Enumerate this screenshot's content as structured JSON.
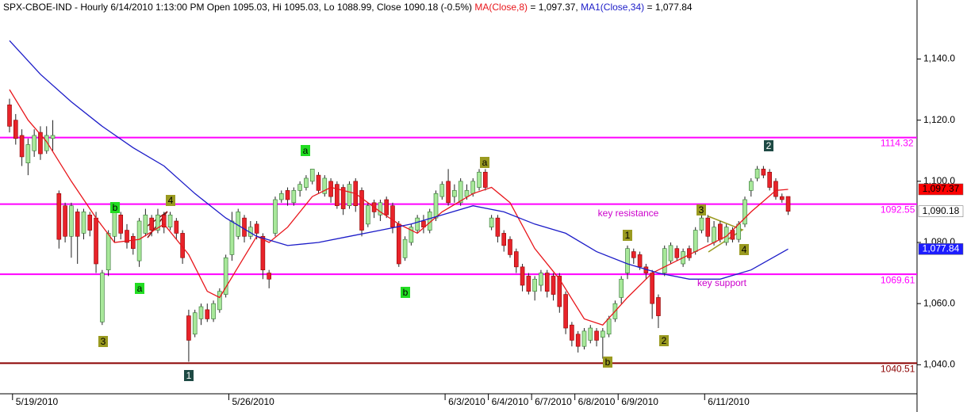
{
  "chart_data": {
    "type": "candlestick",
    "title": "SPX-CBOE-IND - Hourly 6/14/2010 1:13:00 PM Open 1095.03, Hi 1095.03, Lo 1088.99, Close 1090.18 (-0.5%)",
    "categories": [
      null,
      "5/19/2010",
      null,
      null,
      null,
      null,
      null,
      null,
      null,
      null,
      null,
      null,
      null,
      null,
      null,
      null,
      null,
      null,
      null,
      null,
      null,
      null,
      null,
      null,
      null,
      null,
      null,
      null,
      null,
      null,
      null,
      null,
      null,
      null,
      null,
      null,
      "5/26/2010",
      null,
      null,
      null,
      null,
      null,
      null,
      null,
      null,
      null,
      null,
      null,
      null,
      null,
      null,
      null,
      null,
      null,
      null,
      null,
      null,
      null,
      null,
      null,
      null,
      null,
      null,
      null,
      null,
      null,
      null,
      null,
      null,
      null,
      null,
      "6/3/2010",
      null,
      null,
      null,
      null,
      null,
      null,
      "6/4/2010",
      null,
      null,
      null,
      null,
      null,
      null,
      "6/7/2010",
      null,
      null,
      null,
      null,
      null,
      null,
      "6/8/2010",
      null,
      null,
      null,
      null,
      null,
      null,
      "6/9/2010",
      null,
      null,
      null,
      null,
      null,
      null,
      null,
      null,
      null,
      null,
      null,
      null,
      null,
      "6/11/2010",
      null,
      null,
      null,
      null,
      null,
      null,
      null,
      null,
      null,
      null,
      null,
      null,
      null
    ],
    "open": [
      1125,
      1120,
      1115,
      1106,
      1110,
      1116,
      1110,
      1114,
      1096,
      1092,
      1082,
      1090,
      1083,
      1089,
      1088,
      1054,
      1071,
      1082,
      1089,
      1084,
      1082,
      1074,
      1083,
      1088,
      1084,
      1089,
      1085,
      1087,
      1083,
      1056,
      1050,
      1055,
      1058,
      1055,
      1058,
      1063,
      1076,
      1082,
      1088,
      1082,
      1086,
      1082,
      1070,
      1083,
      1094,
      1097,
      1093,
      1097,
      1098,
      1100,
      1102,
      1096,
      1100,
      1099,
      1098,
      1092,
      1100,
      1097,
      1086,
      1093,
      1089,
      1094,
      1092,
      1086,
      1075,
      1080,
      1084,
      1087,
      1084,
      1088,
      1095,
      1100,
      1095,
      1093,
      1095,
      1096,
      1098,
      1103,
      1085,
      1088,
      1083,
      1081,
      1077,
      1072,
      1069,
      1064,
      1066,
      1070,
      1069,
      1069,
      1063,
      1053,
      1050,
      1046,
      1048,
      1051,
      1049,
      1050,
      1055,
      1062,
      1070,
      1077,
      1076,
      1072,
      1070,
      1062,
      1070,
      1074,
      1078,
      1073,
      1078,
      1077,
      1084,
      1088,
      1080,
      1086,
      1080,
      1084,
      1081,
      1086,
      1097,
      1101,
      1104,
      1103,
      1100,
      1095,
      1095.03
    ],
    "high": [
      1127,
      1122,
      1117,
      1114,
      1117,
      1118,
      1118,
      1120,
      1097,
      1093,
      1093,
      1091,
      1091,
      1090,
      1090,
      1071,
      1084,
      1093,
      1090,
      1086,
      1083,
      1088,
      1091,
      1089,
      1091,
      1090,
      1090,
      1088,
      1084,
      1058,
      1058,
      1060,
      1060,
      1061,
      1065,
      1076,
      1090,
      1091,
      1089,
      1087,
      1087,
      1083,
      1071,
      1095,
      1097,
      1098,
      1098,
      1100,
      1102,
      1104,
      1103,
      1102,
      1101,
      1100,
      1099,
      1100,
      1101,
      1098,
      1093,
      1094,
      1094,
      1095,
      1093,
      1087,
      1082,
      1086,
      1089,
      1089,
      1091,
      1097,
      1100,
      1104,
      1099,
      1101,
      1099,
      1101,
      1104,
      1104,
      1089,
      1089,
      1084,
      1082,
      1078,
      1073,
      1070,
      1069,
      1071,
      1071,
      1070,
      1070,
      1064,
      1054,
      1051,
      1052,
      1053,
      1052,
      1052,
      1056,
      1061,
      1069,
      1079,
      1078,
      1077,
      1073,
      1071,
      1063,
      1079,
      1080,
      1079,
      1078,
      1079,
      1085,
      1089,
      1089,
      1087,
      1087,
      1086,
      1085,
      1087,
      1095,
      1101,
      1105,
      1105,
      1104,
      1101,
      1096,
      1095.03
    ],
    "low": [
      1116,
      1112,
      1105,
      1102,
      1108,
      1107,
      1109,
      1110,
      1078,
      1080,
      1075,
      1073,
      1081,
      1082,
      1070,
      1053,
      1069,
      1080,
      1081,
      1078,
      1076,
      1072,
      1082,
      1082,
      1083,
      1083,
      1084,
      1081,
      1073,
      1041,
      1049,
      1053,
      1054,
      1054,
      1057,
      1062,
      1074,
      1081,
      1080,
      1081,
      1081,
      1068,
      1065,
      1082,
      1093,
      1092,
      1092,
      1095,
      1097,
      1099,
      1096,
      1095,
      1093,
      1091,
      1089,
      1091,
      1090,
      1082,
      1085,
      1088,
      1087,
      1088,
      1083,
      1072,
      1074,
      1079,
      1083,
      1083,
      1083,
      1087,
      1094,
      1092,
      1093,
      1092,
      1094,
      1095,
      1097,
      1097,
      1084,
      1080,
      1077,
      1075,
      1070,
      1064,
      1063,
      1061,
      1064,
      1062,
      1061,
      1057,
      1050,
      1046,
      1044,
      1045,
      1047,
      1046,
      1042,
      1049,
      1054,
      1060,
      1068,
      1073,
      1071,
      1068,
      1055,
      1052,
      1069,
      1073,
      1074,
      1072,
      1074,
      1076,
      1083,
      1080,
      1079,
      1080,
      1079,
      1080,
      1080,
      1085,
      1095,
      1100,
      1101,
      1097,
      1094,
      1093,
      1088.99
    ],
    "close": [
      1118,
      1114,
      1108,
      1112,
      1115,
      1109,
      1115,
      1115,
      1081,
      1082,
      1092,
      1082,
      1090,
      1084,
      1073,
      1070,
      1083,
      1090,
      1083,
      1080,
      1078,
      1087,
      1089,
      1084,
      1089,
      1085,
      1089,
      1083,
      1075,
      1048,
      1057,
      1059,
      1055,
      1060,
      1064,
      1075,
      1087,
      1090,
      1082,
      1085,
      1083,
      1071,
      1068,
      1094,
      1096,
      1094,
      1097,
      1099,
      1101,
      1104,
      1097,
      1101,
      1095,
      1092,
      1091,
      1099,
      1092,
      1084,
      1092,
      1090,
      1093,
      1089,
      1085,
      1073,
      1081,
      1085,
      1088,
      1085,
      1090,
      1096,
      1099,
      1093,
      1097,
      1100,
      1097,
      1100,
      1103,
      1098,
      1088,
      1082,
      1079,
      1076,
      1072,
      1066,
      1064,
      1068,
      1070,
      1064,
      1063,
      1059,
      1052,
      1048,
      1046,
      1051,
      1052,
      1048,
      1051,
      1055,
      1060,
      1068,
      1078,
      1075,
      1072,
      1070,
      1060,
      1056,
      1078,
      1079,
      1075,
      1077,
      1075,
      1084,
      1088,
      1082,
      1085,
      1081,
      1085,
      1081,
      1086,
      1094,
      1100,
      1104,
      1102,
      1098,
      1095,
      1094,
      1090.18
    ],
    "up_color": "#a8e89a",
    "down_color": "#e8232a",
    "lines": [
      {
        "name": "MA(Close,8)",
        "color": "#e8161b",
        "legend_value": " = 1,097.37,",
        "x": [
          0,
          3,
          6,
          10,
          14,
          17,
          21,
          25,
          29,
          32,
          34,
          37,
          40,
          42,
          45,
          49,
          52,
          56,
          60,
          63,
          66,
          70,
          75,
          78,
          81,
          85,
          89,
          93,
          96,
          100,
          104,
          108,
          112,
          116,
          120,
          124,
          126
        ],
        "values": [
          1130,
          1120,
          1113,
          1100,
          1088,
          1080,
          1081,
          1086,
          1076,
          1064,
          1062,
          1072,
          1082,
          1080,
          1085,
          1095,
          1098,
          1096,
          1090,
          1086,
          1083,
          1090,
          1096,
          1098,
          1093,
          1078,
          1068,
          1055,
          1053,
          1062,
          1070,
          1074,
          1078,
          1082,
          1090,
          1097,
          1097.37
        ]
      },
      {
        "name": "MA1(Close,34)",
        "color": "#1c1cc8",
        "legend_value": " = 1,077.84",
        "x": [
          0,
          5,
          10,
          15,
          20,
          25,
          30,
          35,
          40,
          45,
          50,
          55,
          60,
          65,
          70,
          75,
          80,
          85,
          90,
          95,
          100,
          105,
          110,
          115,
          120,
          126
        ],
        "values": [
          1146,
          1135,
          1126,
          1118,
          1111,
          1105,
          1096,
          1088,
          1082,
          1079,
          1080,
          1082,
          1084,
          1086,
          1089,
          1092,
          1090,
          1086,
          1083,
          1077,
          1073,
          1070,
          1068,
          1068,
          1071,
          1077.84
        ]
      }
    ],
    "levels": [
      {
        "value": 1114.32,
        "color": "#ff00ff"
      },
      {
        "value": 1092.55,
        "color": "#ff00ff"
      },
      {
        "value": 1069.61,
        "color": "#ff00ff"
      },
      {
        "value": 1040.51,
        "color": "#8b0000"
      }
    ],
    "price_tags": [
      {
        "value": 1097.37,
        "label": "1,097.37",
        "color": "#ff0000",
        "text_color": "#000000"
      },
      {
        "value": 1090.18,
        "label": "1,090.18",
        "color": "#ffffff",
        "text_color": "#000000"
      },
      {
        "value": 1077.84,
        "label": "1,077.84",
        "color": "#1c1cff",
        "text_color": "#ffffff"
      }
    ],
    "annotations": [
      {
        "text": "a",
        "style": "green"
      },
      {
        "text": "b",
        "style": "green"
      },
      {
        "text": "a",
        "style": "green"
      },
      {
        "text": "b",
        "style": "green"
      },
      {
        "text": "3",
        "style": "olive"
      },
      {
        "text": "4",
        "style": "olive"
      },
      {
        "text": "a",
        "style": "olive"
      },
      {
        "text": "b",
        "style": "olive"
      },
      {
        "text": "1",
        "style": "olive"
      },
      {
        "text": "2",
        "style": "olive"
      },
      {
        "text": "3",
        "style": "olive"
      },
      {
        "text": "4",
        "style": "olive"
      },
      {
        "text": "1",
        "style": "teal"
      },
      {
        "text": "2",
        "style": "teal"
      },
      {
        "text": "key resistance",
        "style": "magenta"
      },
      {
        "text": "key support",
        "style": "magenta"
      }
    ],
    "ylim": [
      1030.5,
      1159.3
    ],
    "yticks": [
      {
        "value": 1040,
        "label": "1,040.0"
      },
      {
        "value": 1060,
        "label": "1,060.0"
      },
      {
        "value": 1080,
        "label": "1,080.0"
      },
      {
        "value": 1100,
        "label": "1,100.0"
      },
      {
        "value": 1120,
        "label": "1,120.0"
      },
      {
        "value": 1140,
        "label": "1,140.0"
      }
    ]
  }
}
